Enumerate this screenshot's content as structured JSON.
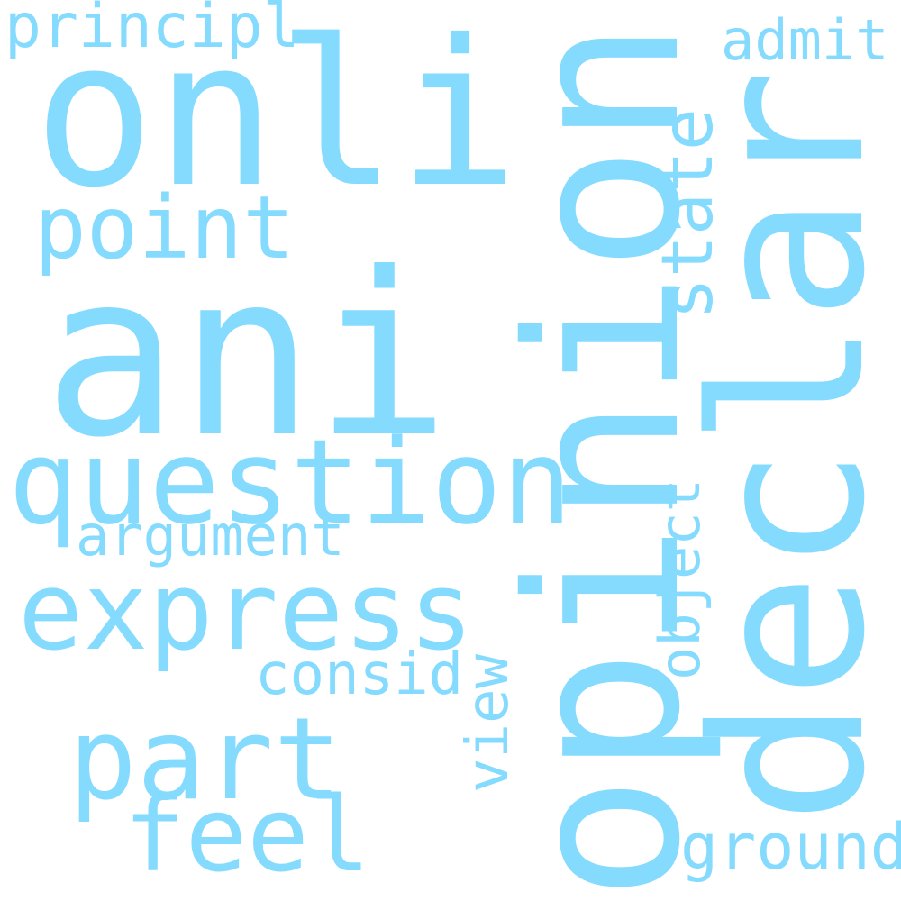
{
  "cloud": {
    "color": "#85dbfd",
    "background": "#ffffff",
    "words": {
      "principl": "principl",
      "onli": "onli",
      "admit": "admit",
      "opinion": "opinion",
      "declar": "declar",
      "point": "point",
      "state": "state",
      "ani": "ani",
      "question": "question",
      "argument": "argument",
      "express": "express",
      "object": "object",
      "consid": "consid",
      "view": "view",
      "part": "part",
      "feel": "feel",
      "ground": "ground"
    }
  }
}
